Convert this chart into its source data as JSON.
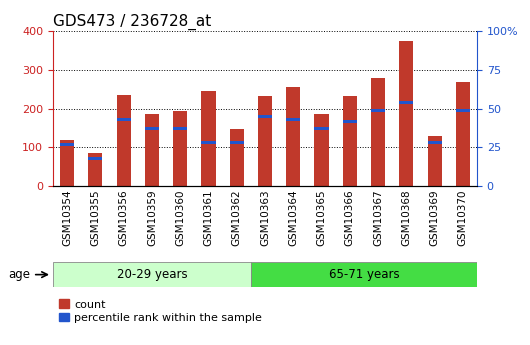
{
  "title": "GDS473 / 236728_at",
  "samples": [
    "GSM10354",
    "GSM10355",
    "GSM10356",
    "GSM10359",
    "GSM10360",
    "GSM10361",
    "GSM10362",
    "GSM10363",
    "GSM10364",
    "GSM10365",
    "GSM10366",
    "GSM10367",
    "GSM10368",
    "GSM10369",
    "GSM10370"
  ],
  "counts": [
    120,
    85,
    235,
    185,
    195,
    245,
    148,
    232,
    255,
    185,
    232,
    278,
    375,
    130,
    268
  ],
  "percentile_ranks": [
    27,
    18,
    43,
    37,
    37,
    28,
    28,
    45,
    43,
    37,
    42,
    49,
    54,
    28,
    49
  ],
  "group1_label": "20-29 years",
  "group2_label": "65-71 years",
  "group1_count": 7,
  "group2_count": 8,
  "age_label": "age",
  "legend1": "count",
  "legend2": "percentile rank within the sample",
  "bar_color": "#C0392B",
  "pct_color": "#2255CC",
  "group1_bg": "#CCFFCC",
  "group2_bg": "#44DD44",
  "bg_color": "#FFFFFF",
  "ylim_left": [
    0,
    400
  ],
  "ylim_right": [
    0,
    100
  ],
  "yticks_left": [
    0,
    100,
    200,
    300,
    400
  ],
  "yticks_right": [
    0,
    25,
    50,
    75,
    100
  ],
  "grid_color": "#000000",
  "title_fontsize": 11,
  "tick_label_fontsize": 7.5,
  "axis_color_left": "#CC2222",
  "axis_color_right": "#2255CC"
}
